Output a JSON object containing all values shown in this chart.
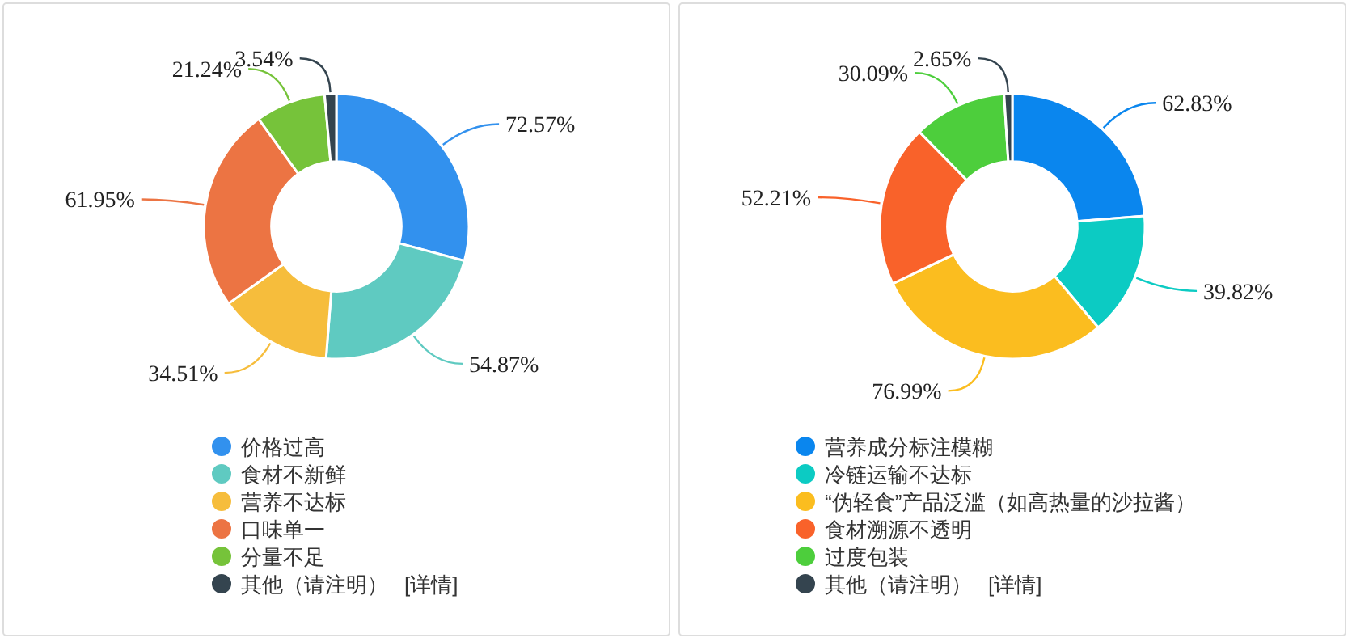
{
  "chart_data": [
    {
      "type": "donut",
      "categories": [
        "价格过高",
        "食材不新鲜",
        "营养不达标",
        "口味单一",
        "分量不足",
        "其他（请注明）"
      ],
      "values": [
        72.57,
        54.87,
        34.51,
        61.95,
        21.24,
        3.54
      ],
      "value_labels": [
        "72.57%",
        "54.87%",
        "34.51%",
        "61.95%",
        "21.24%",
        "3.54%"
      ],
      "colors": [
        "#3291ee",
        "#5fcac1",
        "#f6bd3c",
        "#ec7443",
        "#76c33a",
        "#34444f"
      ],
      "legend": "bottom",
      "annotations": [
        "[详情]"
      ]
    },
    {
      "type": "donut",
      "categories": [
        "营养成分标注模糊",
        "冷链运输不达标",
        "“伪轻食”产品泛滥（如高热量的沙拉酱）",
        "食材溯源不透明",
        "过度包装",
        "其他（请注明）"
      ],
      "values": [
        62.83,
        39.82,
        76.99,
        52.21,
        30.09,
        2.65
      ],
      "value_labels": [
        "62.83%",
        "39.82%",
        "76.99%",
        "52.21%",
        "30.09%",
        "2.65%"
      ],
      "colors": [
        "#0a86ee",
        "#0ccbc3",
        "#fbbd1f",
        "#f9622a",
        "#4dce3c",
        "#34444f"
      ],
      "legend": "bottom",
      "annotations": [
        "[详情]"
      ]
    }
  ]
}
